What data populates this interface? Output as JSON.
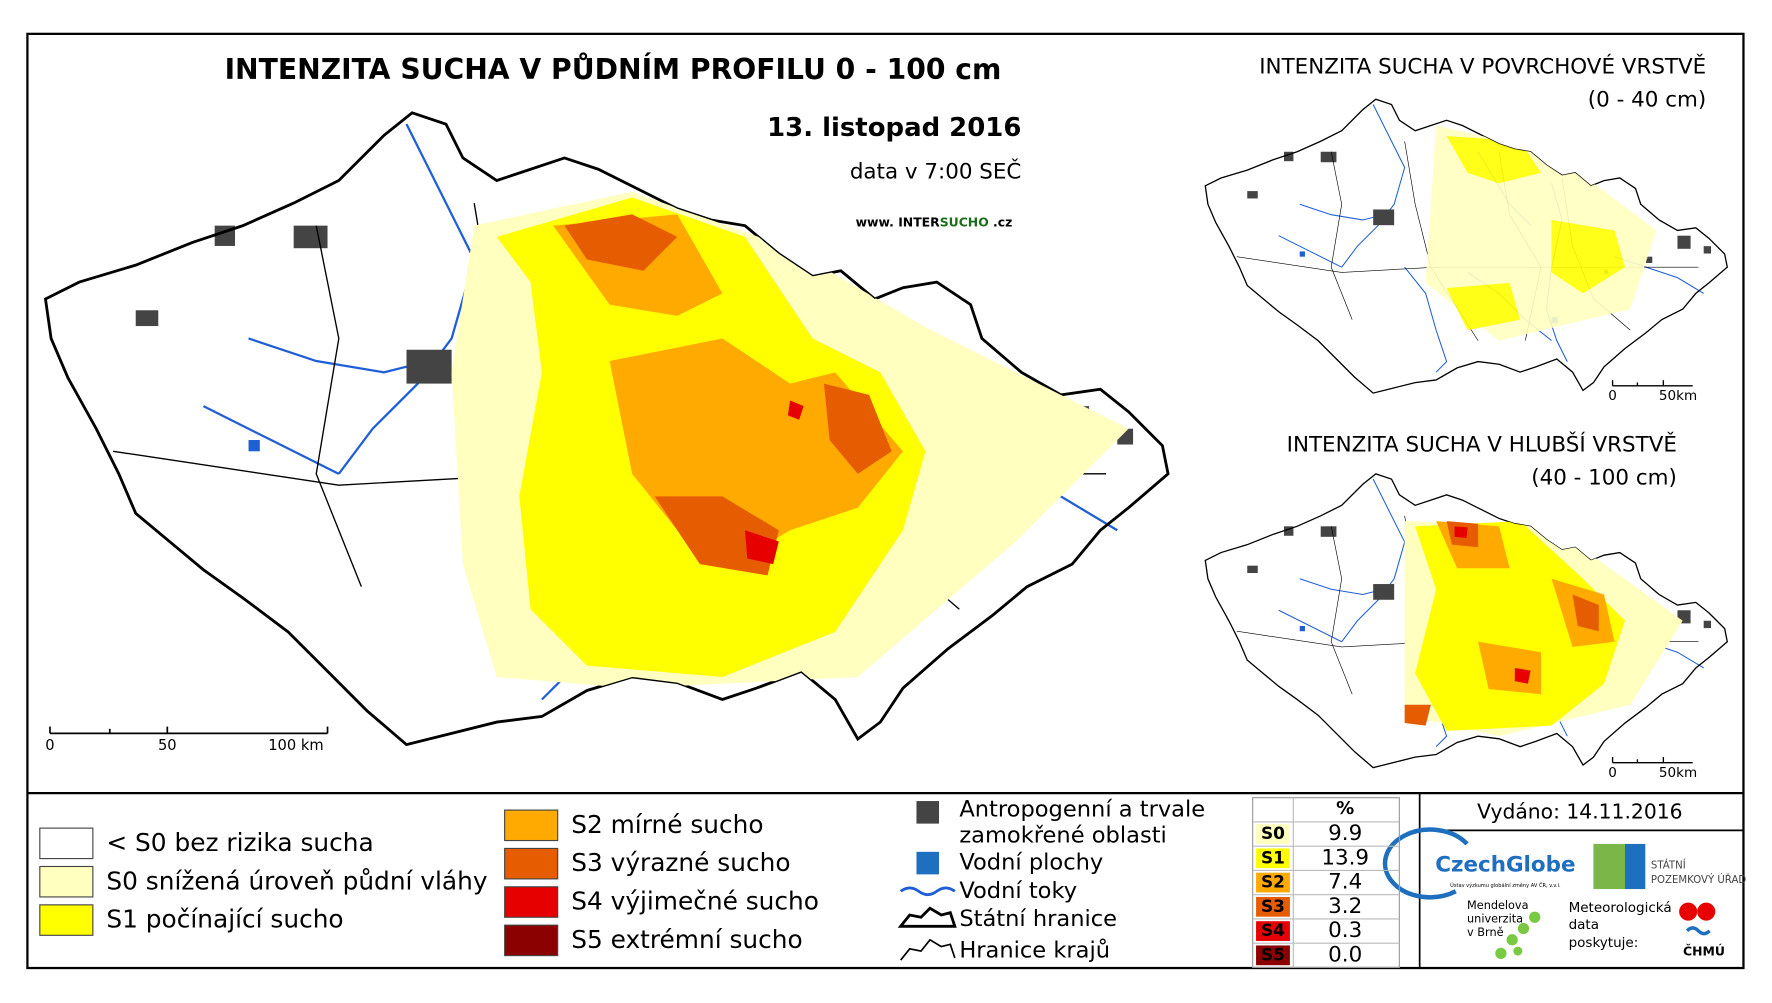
{
  "main_map": {
    "title": "INTENZITA SUCHA V PŮDNÍM PROFILU 0 - 100 cm",
    "date": "13. listopad 2016",
    "time": "data v 7:00 SEČ",
    "website": [
      "www. ",
      "INTER",
      "SUCHO",
      " .cz"
    ],
    "scale_labels": [
      "0",
      "50",
      "100 km"
    ]
  },
  "inset_maps": [
    {
      "title": "INTENZITA SUCHA V POVRCHOVÉ VRSTVĚ",
      "subtitle": "(0 - 40 cm)",
      "scale_labels": [
        "0",
        "50km"
      ]
    },
    {
      "title": "INTENZITA SUCHA V HLUBŠÍ VRSTVĚ",
      "subtitle": "(40 - 100 cm)",
      "scale_labels": [
        "0",
        "50km"
      ]
    }
  ],
  "legend": {
    "classes": [
      {
        "label": "< S0 bez rizika sucha",
        "color": "#ffffff"
      },
      {
        "label": "S0 snížená úroveň půdní vláhy",
        "color": "#ffffc0"
      },
      {
        "label": "S1 počínající sucho",
        "color": "#ffff00"
      },
      {
        "label": "S2 mírné sucho",
        "color": "#ffaa00"
      },
      {
        "label": "S3 výrazné sucho",
        "color": "#e65c00"
      },
      {
        "label": "S4 výjimečné sucho",
        "color": "#e60000"
      },
      {
        "label": "S5 extrémní sucho",
        "color": "#8b0000"
      }
    ],
    "symbols": [
      [
        "Antropogenní a trvale",
        "zamokřené oblasti"
      ],
      [
        "Vodní plochy"
      ],
      [
        "Vodní toky"
      ],
      [
        "Státní hranice"
      ],
      [
        "Hranice krajů"
      ]
    ]
  },
  "table": {
    "header": "%",
    "rows": [
      {
        "class": "S0",
        "value": "9.9",
        "color": "#ffffc0"
      },
      {
        "class": "S1",
        "value": "13.9",
        "color": "#ffff00"
      },
      {
        "class": "S2",
        "value": "7.4",
        "color": "#ffaa00"
      },
      {
        "class": "S3",
        "value": "3.2",
        "color": "#e65c00"
      },
      {
        "class": "S4",
        "value": "0.3",
        "color": "#e60000"
      },
      {
        "class": "S5",
        "value": "0.0",
        "color": "#8b0000"
      }
    ]
  },
  "issued": "Vydáno: 14.11.2016",
  "logos": {
    "czechglobe": "CzechGlobe",
    "czechglobe_sub": "Ústav výzkumu globální změny AV ČR, v.v.i.",
    "spu": [
      "STÁTNÍ",
      "POZEMKOVÝ ÚŘAD"
    ],
    "mendelu": [
      "Mendelova",
      "univerzita",
      "v Brně"
    ],
    "chmu_text": [
      "Meteorologická",
      "data",
      "poskytuje:"
    ],
    "chmu": "ČHMÚ"
  }
}
